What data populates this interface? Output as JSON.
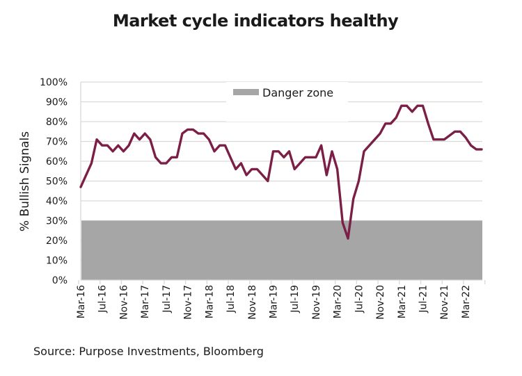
{
  "chart_data": {
    "type": "line",
    "title": "Market cycle indicators healthy",
    "ylabel": "% Bullish Signals",
    "xlabel": "",
    "ylim": [
      0,
      100
    ],
    "yticks": [
      "0%",
      "10%",
      "20%",
      "30%",
      "40%",
      "50%",
      "60%",
      "70%",
      "80%",
      "90%",
      "100%"
    ],
    "xticks": [
      "Mar-16",
      "Jul-16",
      "Nov-16",
      "Mar-17",
      "Jul-17",
      "Nov-17",
      "Mar-18",
      "Jul-18",
      "Nov-18",
      "Mar-19",
      "Jul-19",
      "Nov-19",
      "Mar-20",
      "Jul-20",
      "Nov-20",
      "Mar-21",
      "Jul-21",
      "Nov-21",
      "Mar-22"
    ],
    "grid": "horizontal",
    "legend": {
      "position": "top-center",
      "entries": [
        "Danger zone"
      ]
    },
    "danger_zone": {
      "name": "Danger zone",
      "from": 0,
      "to": 30,
      "color": "#a6a6a6"
    },
    "x": [
      "Mar-16",
      "Apr-16",
      "May-16",
      "Jun-16",
      "Jul-16",
      "Aug-16",
      "Sep-16",
      "Oct-16",
      "Nov-16",
      "Dec-16",
      "Jan-17",
      "Feb-17",
      "Mar-17",
      "Apr-17",
      "May-17",
      "Jun-17",
      "Jul-17",
      "Aug-17",
      "Sep-17",
      "Oct-17",
      "Nov-17",
      "Dec-17",
      "Jan-18",
      "Feb-18",
      "Mar-18",
      "Apr-18",
      "May-18",
      "Jun-18",
      "Jul-18",
      "Aug-18",
      "Sep-18",
      "Oct-18",
      "Nov-18",
      "Dec-18",
      "Jan-19",
      "Feb-19",
      "Mar-19",
      "Apr-19",
      "May-19",
      "Jun-19",
      "Jul-19",
      "Aug-19",
      "Sep-19",
      "Oct-19",
      "Nov-19",
      "Dec-19",
      "Jan-20",
      "Feb-20",
      "Mar-20",
      "Apr-20",
      "May-20",
      "Jun-20",
      "Jul-20",
      "Aug-20",
      "Sep-20",
      "Oct-20",
      "Nov-20",
      "Dec-20",
      "Jan-21",
      "Feb-21",
      "Mar-21",
      "Apr-21",
      "May-21",
      "Jun-21",
      "Jul-21",
      "Aug-21",
      "Sep-21",
      "Oct-21",
      "Nov-21",
      "Dec-21",
      "Jan-22",
      "Feb-22",
      "Mar-22",
      "Apr-22",
      "May-22",
      "Jun-22"
    ],
    "series": [
      {
        "color": "#7b1f47",
        "values": [
          47,
          53,
          59,
          71,
          68,
          68,
          65,
          68,
          65,
          68,
          74,
          71,
          74,
          71,
          62,
          59,
          59,
          62,
          62,
          74,
          76,
          76,
          74,
          74,
          71,
          65,
          68,
          68,
          62,
          56,
          59,
          53,
          56,
          56,
          53,
          50,
          65,
          65,
          62,
          65,
          56,
          59,
          62,
          62,
          62,
          68,
          53,
          65,
          56,
          29,
          21,
          41,
          50,
          65,
          68,
          71,
          74,
          79,
          79,
          82,
          88,
          88,
          85,
          88,
          88,
          79,
          71,
          71,
          71,
          73,
          75,
          75,
          72,
          68,
          66,
          66
        ]
      }
    ]
  },
  "source": "Source: Purpose Investments, Bloomberg"
}
